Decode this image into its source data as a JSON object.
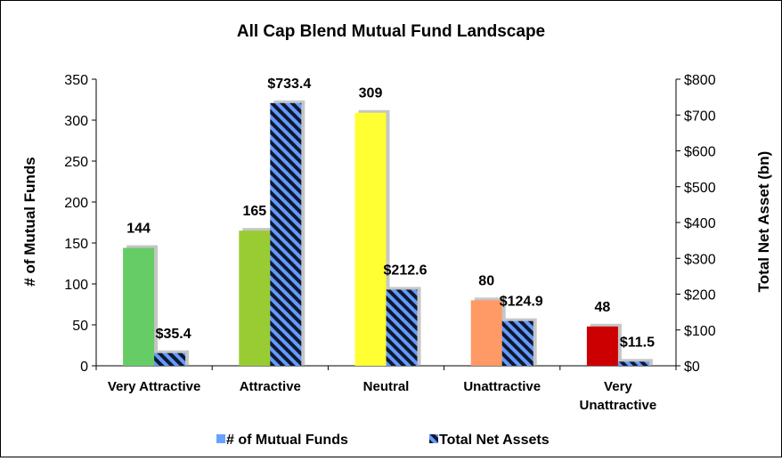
{
  "chart_data": {
    "type": "bar",
    "title": "All Cap Blend Mutual Fund Landscape",
    "categories": [
      "Very Attractive",
      "Attractive",
      "Neutral",
      "Unattractive",
      "Very Unattractive"
    ],
    "category_lines": [
      [
        "Very Attractive"
      ],
      [
        "Attractive"
      ],
      [
        "Neutral"
      ],
      [
        "Unattractive"
      ],
      [
        "Very",
        "Unattractive"
      ]
    ],
    "series": [
      {
        "name": "# of Mutual Funds",
        "axis": "left",
        "values": [
          144,
          165,
          309,
          80,
          48
        ],
        "labels": [
          "144",
          "165",
          "309",
          "80",
          "48"
        ],
        "colors": [
          "#66cc66",
          "#99cc33",
          "#ffff33",
          "#ff9966",
          "#cc0000"
        ],
        "legend_color": "#66a3ff"
      },
      {
        "name": "Total Net Assets",
        "axis": "right",
        "values": [
          35.4,
          733.4,
          212.6,
          124.9,
          11.5
        ],
        "labels": [
          "$35.4",
          "$733.4",
          "$212.6",
          "$124.9",
          "$11.5"
        ],
        "pattern": "diagonal-stripes",
        "stripe_color": "#6699ff",
        "base_color": "#0d1a2e"
      }
    ],
    "ylabel": "# of Mutual Funds",
    "y2label": "Total Net Asset (bn)",
    "ylim": [
      0,
      350
    ],
    "y2lim": [
      0,
      800
    ],
    "yticks": [
      0,
      50,
      100,
      150,
      200,
      250,
      300,
      350
    ],
    "y2ticks": [
      "$0",
      "$100",
      "$200",
      "$300",
      "$400",
      "$500",
      "$600",
      "$700",
      "$800"
    ],
    "legend_position": "bottom",
    "grid": false
  }
}
